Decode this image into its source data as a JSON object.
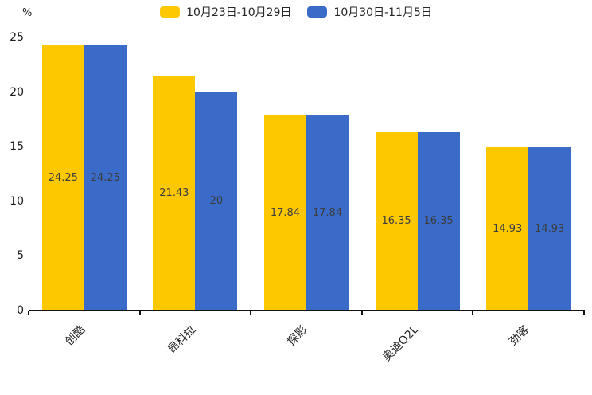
{
  "legend": [
    {
      "label": "10月23日-10月29日",
      "color": "#FDC800"
    },
    {
      "label": "10月30日-11月5日",
      "color": "#3A6BC8"
    }
  ],
  "chart_data": {
    "type": "bar",
    "title": "",
    "categories": [
      "创酷",
      "昂科拉",
      "探影",
      "奥迪Q2L",
      "劲客"
    ],
    "series": [
      {
        "name": "10月23日-10月29日",
        "color": "#FDC800",
        "values": [
          24.25,
          21.43,
          17.84,
          16.35,
          14.93
        ],
        "labels": [
          "24.25",
          "21.43",
          "17.84",
          "16.35",
          "14.93"
        ]
      },
      {
        "name": "10月30日-11月5日",
        "color": "#3A6BC8",
        "values": [
          24.25,
          20,
          17.84,
          16.35,
          14.93
        ],
        "labels": [
          "24.25",
          "20",
          "17.84",
          "16.35",
          "14.93"
        ]
      }
    ],
    "xlabel": "",
    "ylabel": "%",
    "yticks": [
      0,
      5,
      10,
      15,
      20,
      25
    ],
    "ylim": [
      0,
      25
    ],
    "grid": false,
    "legend_position": "top-center",
    "label_position": "inside-center",
    "x_label_rotation": 45
  }
}
